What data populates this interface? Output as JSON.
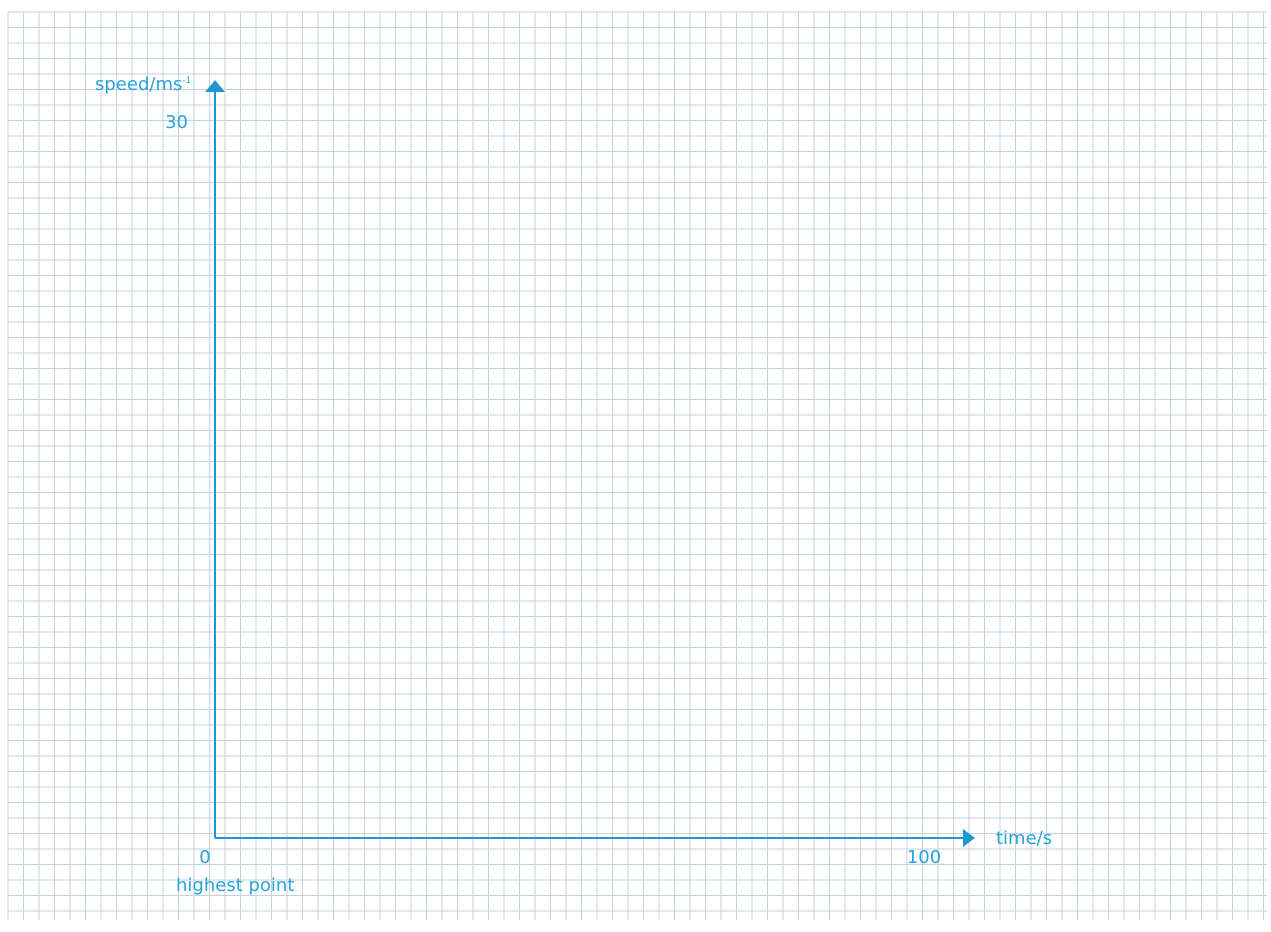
{
  "chart_data": {
    "type": "line",
    "title": "",
    "xlabel": "time/s",
    "ylabel": "speed/ms",
    "ylabel_superscript": "-1",
    "xlim": [
      0,
      100
    ],
    "ylim": [
      0,
      30
    ],
    "x_ticks": [
      {
        "value": 0,
        "label": "0"
      },
      {
        "value": 100,
        "label": "100"
      }
    ],
    "y_ticks": [
      {
        "value": 30,
        "label": "30"
      }
    ],
    "annotations": [
      {
        "x": 0,
        "text": "highest point"
      }
    ],
    "series": [],
    "grid": true,
    "colors": {
      "axis": "#1f96d1",
      "text": "#2aa3dd",
      "grid": "#c4d2e0"
    }
  }
}
